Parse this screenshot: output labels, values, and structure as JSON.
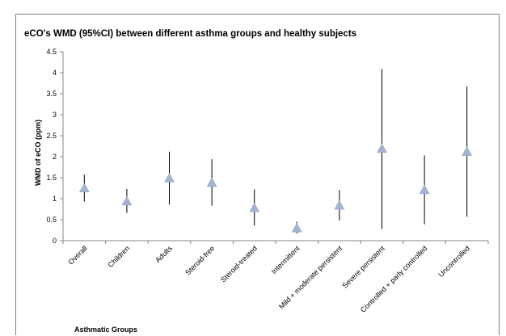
{
  "chart_data": {
    "type": "scatter",
    "title": "eCO's WMD (95%CI) between different asthma groups and healthy subjects",
    "xlabel": "Asthmatic Groups",
    "ylabel": "WMD of eCO  (ppm)",
    "ylim": [
      0,
      4.5
    ],
    "y_ticks": [
      "0",
      "0.5",
      "1",
      "1.5",
      "2",
      "2.5",
      "3",
      "3.5",
      "4",
      "4.5"
    ],
    "grid": false,
    "marker_color": "#a5b3d0",
    "error_bar_color": "#000000",
    "categories": [
      "Overall",
      "Children",
      "Adults",
      "Steroid-free",
      "Steroid-treated",
      "Intermittent",
      "Mild + moderate persistent",
      "Severe persistent",
      "Controlled + parly controlled",
      "Uncontrolled"
    ],
    "series": [
      {
        "values": [
          1.25,
          0.94,
          1.49,
          1.38,
          0.78,
          0.3,
          0.84,
          2.19,
          1.21,
          2.12
        ],
        "ci_low": [
          0.93,
          0.66,
          0.86,
          0.83,
          0.36,
          0.17,
          0.48,
          0.28,
          0.39,
          0.57
        ],
        "ci_high": [
          1.57,
          1.23,
          2.12,
          1.94,
          1.22,
          0.45,
          1.21,
          4.09,
          2.03,
          3.67
        ]
      }
    ]
  }
}
